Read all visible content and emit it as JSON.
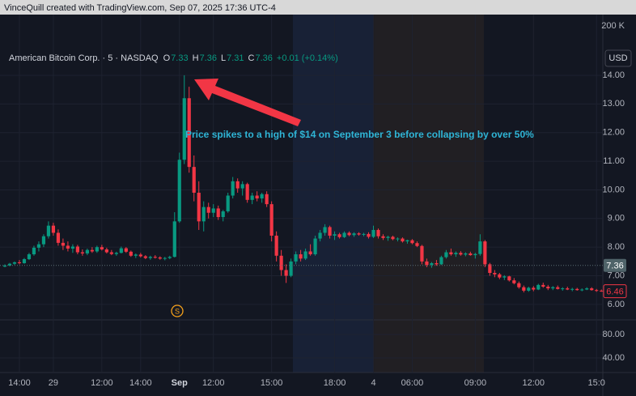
{
  "header": {
    "text": "VinceQuill created with TradingView.com, Sep 07, 2025 17:36 UTC-4"
  },
  "chart_data": {
    "type": "candlestick",
    "legend": {
      "symbol": "American Bitcoin Corp. · 5 · NASDAQ",
      "items": [
        {
          "key": "O",
          "value": 7.33
        },
        {
          "key": "H",
          "value": 7.36
        },
        {
          "key": "L",
          "value": 7.31
        },
        {
          "key": "C",
          "value": 7.36
        }
      ],
      "change": "+0.01 (+0.14%)"
    },
    "annotation": "Price spikes to a high of $14 on September 3 before collapsing by over 50%",
    "currency": "USD",
    "volume_scale_label": "200 K",
    "event_marker": "S",
    "reference_price": 7.36,
    "last_price": 6.46,
    "colors": {
      "up": "#089981",
      "down": "#f23645",
      "annotation": "#2fb5d6",
      "arrow": "#f23645"
    },
    "grid": true,
    "xlim": [
      -1,
      123.3
    ],
    "xticks": [
      {
        "value": 3,
        "label": "14:00"
      },
      {
        "value": 10,
        "label": "29"
      },
      {
        "value": 20,
        "label": "12:00"
      },
      {
        "value": 28,
        "label": "14:00"
      },
      {
        "value": 36,
        "label": "Sep"
      },
      {
        "value": 43,
        "label": "12:00"
      },
      {
        "value": 55,
        "label": "15:00"
      },
      {
        "value": 68,
        "label": "18:00"
      },
      {
        "value": 76,
        "label": "4"
      },
      {
        "value": 84,
        "label": "06:00"
      },
      {
        "value": 97,
        "label": "09:00"
      },
      {
        "value": 109,
        "label": "12:00"
      },
      {
        "value": 122,
        "label": "15:0"
      }
    ],
    "ylim": [
      5.46,
      16.12
    ],
    "yticks": [
      {
        "value": 6,
        "label": "6.00"
      },
      {
        "value": 7,
        "label": "7.00"
      },
      {
        "value": 8,
        "label": "8.00"
      },
      {
        "value": 9,
        "label": "9.00"
      },
      {
        "value": 10,
        "label": "10.00"
      },
      {
        "value": 11,
        "label": "11.00"
      },
      {
        "value": 12,
        "label": "12.00"
      },
      {
        "value": 13,
        "label": "13.00"
      },
      {
        "value": 14,
        "label": "14.00"
      }
    ],
    "lower_ylim": [
      15.2,
      104.8
    ],
    "lower_yticks": [
      {
        "value": 40,
        "label": "40.00"
      },
      {
        "value": 80,
        "label": "80.00"
      }
    ],
    "ohlc": [
      [
        7.32,
        7.4,
        7.3,
        7.36
      ],
      [
        7.36,
        7.45,
        7.33,
        7.42
      ],
      [
        7.42,
        7.5,
        7.38,
        7.47
      ],
      [
        7.47,
        7.55,
        7.4,
        7.44
      ],
      [
        7.44,
        7.62,
        7.42,
        7.58
      ],
      [
        7.58,
        7.8,
        7.55,
        7.75
      ],
      [
        7.75,
        8.05,
        7.7,
        7.98
      ],
      [
        7.98,
        8.2,
        7.85,
        8.1
      ],
      [
        8.1,
        8.45,
        8.0,
        8.38
      ],
      [
        8.38,
        8.9,
        8.3,
        8.75
      ],
      [
        8.75,
        8.85,
        8.4,
        8.5
      ],
      [
        8.5,
        8.62,
        8.05,
        8.15
      ],
      [
        8.15,
        8.3,
        7.9,
        8.05
      ],
      [
        8.05,
        8.2,
        7.85,
        7.95
      ],
      [
        7.95,
        8.1,
        7.8,
        8.02
      ],
      [
        8.02,
        8.08,
        7.75,
        7.82
      ],
      [
        7.82,
        7.92,
        7.7,
        7.78
      ],
      [
        7.78,
        7.95,
        7.72,
        7.9
      ],
      [
        7.9,
        8.0,
        7.8,
        7.85
      ],
      [
        7.85,
        8.05,
        7.8,
        8.0
      ],
      [
        8.0,
        8.08,
        7.88,
        7.92
      ],
      [
        7.92,
        7.98,
        7.78,
        7.82
      ],
      [
        7.82,
        7.9,
        7.72,
        7.76
      ],
      [
        7.76,
        7.84,
        7.7,
        7.8
      ],
      [
        7.8,
        8.02,
        7.78,
        7.96
      ],
      [
        7.96,
        8.0,
        7.8,
        7.84
      ],
      [
        7.84,
        7.88,
        7.66,
        7.7
      ],
      [
        7.7,
        7.78,
        7.62,
        7.74
      ],
      [
        7.74,
        7.8,
        7.64,
        7.68
      ],
      [
        7.68,
        7.72,
        7.58,
        7.62
      ],
      [
        7.62,
        7.7,
        7.56,
        7.66
      ],
      [
        7.66,
        7.72,
        7.6,
        7.64
      ],
      [
        7.64,
        7.68,
        7.56,
        7.6
      ],
      [
        7.6,
        7.66,
        7.54,
        7.62
      ],
      [
        7.62,
        7.7,
        7.58,
        7.66
      ],
      [
        7.66,
        9.22,
        7.64,
        8.9
      ],
      [
        8.9,
        11.3,
        8.85,
        11.05
      ],
      [
        11.05,
        14.0,
        10.9,
        13.2
      ],
      [
        13.2,
        13.6,
        10.6,
        10.8
      ],
      [
        10.8,
        11.2,
        9.6,
        9.9
      ],
      [
        9.9,
        10.3,
        8.6,
        8.9
      ],
      [
        8.9,
        9.6,
        8.55,
        9.4
      ],
      [
        9.4,
        9.55,
        9.0,
        9.2
      ],
      [
        9.2,
        9.5,
        9.05,
        9.35
      ],
      [
        9.35,
        9.45,
        8.95,
        9.05
      ],
      [
        9.05,
        9.3,
        8.9,
        9.25
      ],
      [
        9.25,
        9.9,
        9.2,
        9.8
      ],
      [
        9.8,
        10.45,
        9.7,
        10.3
      ],
      [
        10.3,
        10.4,
        9.9,
        10.05
      ],
      [
        10.05,
        10.3,
        9.8,
        10.2
      ],
      [
        10.2,
        10.25,
        9.55,
        9.65
      ],
      [
        9.65,
        9.9,
        9.5,
        9.8
      ],
      [
        9.8,
        9.95,
        9.6,
        9.7
      ],
      [
        9.7,
        9.9,
        9.55,
        9.85
      ],
      [
        9.85,
        9.95,
        9.4,
        9.5
      ],
      [
        9.5,
        9.6,
        8.2,
        8.4
      ],
      [
        8.4,
        8.55,
        7.5,
        7.7
      ],
      [
        7.7,
        7.9,
        7.0,
        7.2
      ],
      [
        7.2,
        7.4,
        6.75,
        7.0
      ],
      [
        7.0,
        7.6,
        6.95,
        7.5
      ],
      [
        7.5,
        7.85,
        7.4,
        7.75
      ],
      [
        7.75,
        7.9,
        7.5,
        7.6
      ],
      [
        7.6,
        7.95,
        7.55,
        7.85
      ],
      [
        7.85,
        8.1,
        7.7,
        7.75
      ],
      [
        7.75,
        8.4,
        7.7,
        8.3
      ],
      [
        8.3,
        8.6,
        8.2,
        8.5
      ],
      [
        8.5,
        8.8,
        8.4,
        8.7
      ],
      [
        8.7,
        8.75,
        8.3,
        8.4
      ],
      [
        8.4,
        8.55,
        8.25,
        8.45
      ],
      [
        8.45,
        8.5,
        8.3,
        8.35
      ],
      [
        8.35,
        8.55,
        8.32,
        8.5
      ],
      [
        8.5,
        8.55,
        8.38,
        8.42
      ],
      [
        8.42,
        8.52,
        8.36,
        8.48
      ],
      [
        8.48,
        8.52,
        8.4,
        8.44
      ],
      [
        8.44,
        8.5,
        8.38,
        8.46
      ],
      [
        8.46,
        8.52,
        8.3,
        8.36
      ],
      [
        8.36,
        8.75,
        8.32,
        8.6
      ],
      [
        8.6,
        8.65,
        8.3,
        8.38
      ],
      [
        8.38,
        8.45,
        8.25,
        8.32
      ],
      [
        8.32,
        8.4,
        8.22,
        8.36
      ],
      [
        8.36,
        8.4,
        8.24,
        8.28
      ],
      [
        8.28,
        8.34,
        8.2,
        8.3
      ],
      [
        8.3,
        8.34,
        8.16,
        8.2
      ],
      [
        8.2,
        8.26,
        8.12,
        8.24
      ],
      [
        8.24,
        8.28,
        8.1,
        8.14
      ],
      [
        8.14,
        8.2,
        8.0,
        8.04
      ],
      [
        8.04,
        8.08,
        7.4,
        7.5
      ],
      [
        7.5,
        7.6,
        7.3,
        7.38
      ],
      [
        7.38,
        7.48,
        7.28,
        7.44
      ],
      [
        7.44,
        7.55,
        7.35,
        7.4
      ],
      [
        7.4,
        7.7,
        7.38,
        7.65
      ],
      [
        7.65,
        7.9,
        7.6,
        7.82
      ],
      [
        7.82,
        7.95,
        7.7,
        7.75
      ],
      [
        7.75,
        7.85,
        7.66,
        7.8
      ],
      [
        7.8,
        7.86,
        7.7,
        7.74
      ],
      [
        7.74,
        7.82,
        7.68,
        7.78
      ],
      [
        7.78,
        7.84,
        7.7,
        7.72
      ],
      [
        7.72,
        7.8,
        7.6,
        7.76
      ],
      [
        7.76,
        8.45,
        7.7,
        8.2
      ],
      [
        8.2,
        8.25,
        7.3,
        7.4
      ],
      [
        7.4,
        7.45,
        7.0,
        7.1
      ],
      [
        7.1,
        7.2,
        6.95,
        7.05
      ],
      [
        7.05,
        7.1,
        6.88,
        6.94
      ],
      [
        6.94,
        7.02,
        6.85,
        6.98
      ],
      [
        6.98,
        7.0,
        6.8,
        6.84
      ],
      [
        6.84,
        6.92,
        6.7,
        6.74
      ],
      [
        6.74,
        6.8,
        6.55,
        6.6
      ],
      [
        6.6,
        6.66,
        6.42,
        6.48
      ],
      [
        6.48,
        6.62,
        6.44,
        6.58
      ],
      [
        6.58,
        6.64,
        6.46,
        6.52
      ],
      [
        6.52,
        6.72,
        6.5,
        6.68
      ],
      [
        6.68,
        6.76,
        6.58,
        6.62
      ],
      [
        6.62,
        6.68,
        6.5,
        6.56
      ],
      [
        6.56,
        6.64,
        6.5,
        6.6
      ],
      [
        6.6,
        6.66,
        6.52,
        6.54
      ],
      [
        6.54,
        6.6,
        6.48,
        6.56
      ],
      [
        6.56,
        6.62,
        6.5,
        6.52
      ],
      [
        6.52,
        6.58,
        6.46,
        6.54
      ],
      [
        6.54,
        6.58,
        6.48,
        6.5
      ],
      [
        6.5,
        6.56,
        6.46,
        6.52
      ],
      [
        6.52,
        6.6,
        6.5,
        6.56
      ],
      [
        6.56,
        6.6,
        6.48,
        6.5
      ],
      [
        6.5,
        6.54,
        6.44,
        6.48
      ],
      [
        6.48,
        6.52,
        6.44,
        6.46
      ]
    ]
  }
}
